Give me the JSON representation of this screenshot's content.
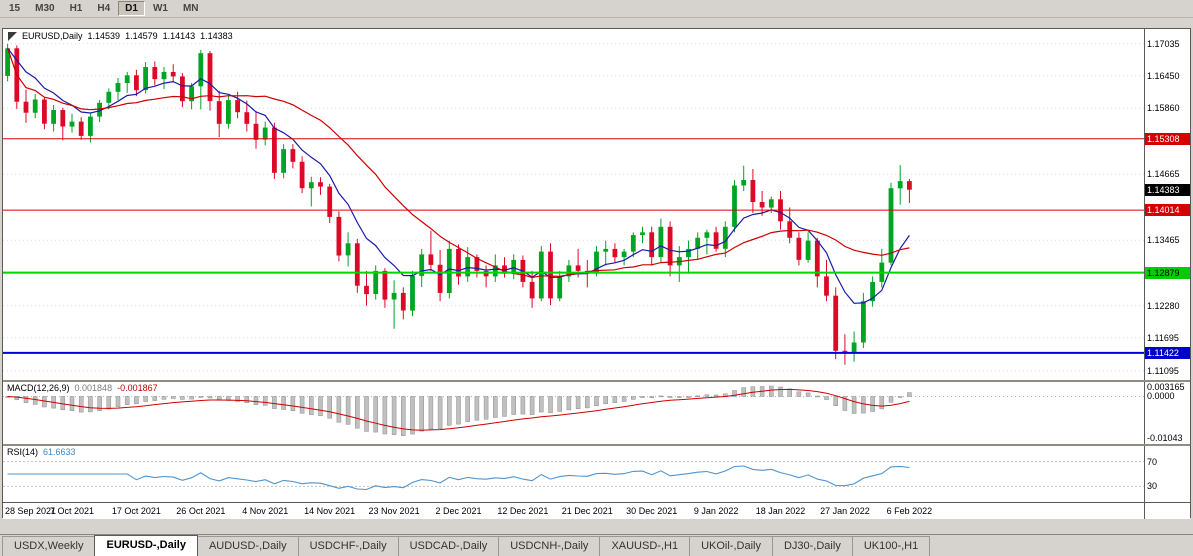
{
  "window": {
    "background": "#d6d3ce"
  },
  "toolbar": {
    "timeframes": [
      {
        "label": "15",
        "active": false
      },
      {
        "label": "M30",
        "active": false
      },
      {
        "label": "H1",
        "active": false
      },
      {
        "label": "H4",
        "active": false
      },
      {
        "label": "D1",
        "active": true
      },
      {
        "label": "W1",
        "active": false
      },
      {
        "label": "MN",
        "active": false
      }
    ]
  },
  "chart": {
    "header": {
      "symbol": "EURUSD,Daily",
      "open": "1.14539",
      "high": "1.14579",
      "low": "1.14143",
      "close": "1.14383"
    }
  },
  "chart_data": {
    "type": "candlestick",
    "symbol": "EURUSD",
    "period": "Daily",
    "y_range": [
      1.1093,
      1.173
    ],
    "y_ticks": [
      "1.17035",
      "1.16450",
      "1.15860",
      "1.14665",
      "1.13465",
      "1.12280",
      "1.11695",
      "1.11095"
    ],
    "price_lines": [
      {
        "value": 1.15308,
        "label": "1.15308",
        "color": "#e00000",
        "thickness": 1,
        "badge_bg": "#d40000",
        "badge_fg": "#ffffff"
      },
      {
        "value": 1.14014,
        "label": "1.14014",
        "color": "#e00000",
        "thickness": 1,
        "badge_bg": "#d40000",
        "badge_fg": "#ffffff"
      },
      {
        "value": 1.12879,
        "label": "1.12879",
        "color": "#00d400",
        "thickness": 2,
        "badge_bg": "#00cc00",
        "badge_fg": "#000000"
      },
      {
        "value": 1.11422,
        "label": "1.11422",
        "color": "#0000e0",
        "thickness": 2,
        "badge_bg": "#0000cc",
        "badge_fg": "#ffffff"
      }
    ],
    "current_price": {
      "value": 1.14383,
      "label": "1.14383",
      "bg": "#000000"
    },
    "slots": 124,
    "x_labels": [
      {
        "i": 0,
        "t": "28 Sep 2021"
      },
      {
        "i": 7,
        "t": "7 Oct 2021"
      },
      {
        "i": 14,
        "t": "17 Oct 2021"
      },
      {
        "i": 21,
        "t": "26 Oct 2021"
      },
      {
        "i": 28,
        "t": "4 Nov 2021"
      },
      {
        "i": 35,
        "t": "14 Nov 2021"
      },
      {
        "i": 42,
        "t": "23 Nov 2021"
      },
      {
        "i": 49,
        "t": "2 Dec 2021"
      },
      {
        "i": 56,
        "t": "12 Dec 2021"
      },
      {
        "i": 63,
        "t": "21 Dec 2021"
      },
      {
        "i": 70,
        "t": "30 Dec 2021"
      },
      {
        "i": 77,
        "t": "9 Jan 2022"
      },
      {
        "i": 84,
        "t": "18 Jan 2022"
      },
      {
        "i": 91,
        "t": "27 Jan 2022"
      },
      {
        "i": 98,
        "t": "6 Feb 2022"
      }
    ],
    "candles": [
      [
        1.1645,
        1.1703,
        1.1635,
        1.1695
      ],
      [
        1.1695,
        1.17,
        1.1585,
        1.1598
      ],
      [
        1.1598,
        1.162,
        1.156,
        1.1578
      ],
      [
        1.1578,
        1.1612,
        1.1568,
        1.1602
      ],
      [
        1.1602,
        1.1606,
        1.1548,
        1.1558
      ],
      [
        1.1558,
        1.1592,
        1.1544,
        1.1583
      ],
      [
        1.1583,
        1.1587,
        1.1528,
        1.1553
      ],
      [
        1.1553,
        1.1576,
        1.1542,
        1.1562
      ],
      [
        1.1562,
        1.157,
        1.1529,
        1.1536
      ],
      [
        1.1536,
        1.1577,
        1.1524,
        1.1571
      ],
      [
        1.1571,
        1.1601,
        1.1561,
        1.1596
      ],
      [
        1.1596,
        1.1622,
        1.1584,
        1.1616
      ],
      [
        1.1616,
        1.1641,
        1.1601,
        1.1632
      ],
      [
        1.1632,
        1.1652,
        1.1614,
        1.1646
      ],
      [
        1.1646,
        1.1656,
        1.1608,
        1.1619
      ],
      [
        1.1619,
        1.167,
        1.1613,
        1.1661
      ],
      [
        1.1661,
        1.1671,
        1.1628,
        1.1639
      ],
      [
        1.1639,
        1.1661,
        1.1621,
        1.1652
      ],
      [
        1.1652,
        1.1666,
        1.1633,
        1.1644
      ],
      [
        1.1644,
        1.165,
        1.1588,
        1.1599
      ],
      [
        1.1599,
        1.1632,
        1.1584,
        1.1626
      ],
      [
        1.1626,
        1.1692,
        1.1584,
        1.1686
      ],
      [
        1.1686,
        1.169,
        1.1582,
        1.1599
      ],
      [
        1.1599,
        1.1618,
        1.1534,
        1.1558
      ],
      [
        1.1558,
        1.161,
        1.1549,
        1.1601
      ],
      [
        1.1601,
        1.1616,
        1.1568,
        1.1579
      ],
      [
        1.1579,
        1.16,
        1.1544,
        1.1558
      ],
      [
        1.1558,
        1.1581,
        1.1513,
        1.1529
      ],
      [
        1.1529,
        1.1562,
        1.1519,
        1.1551
      ],
      [
        1.1551,
        1.156,
        1.1458,
        1.1469
      ],
      [
        1.1469,
        1.1521,
        1.1459,
        1.1512
      ],
      [
        1.1512,
        1.1521,
        1.1477,
        1.1489
      ],
      [
        1.1489,
        1.1499,
        1.1432,
        1.1441
      ],
      [
        1.1441,
        1.1462,
        1.1408,
        1.1452
      ],
      [
        1.1452,
        1.1461,
        1.1429,
        1.1444
      ],
      [
        1.1444,
        1.1449,
        1.1378,
        1.1389
      ],
      [
        1.1389,
        1.1399,
        1.1308,
        1.1319
      ],
      [
        1.1319,
        1.1361,
        1.1299,
        1.1341
      ],
      [
        1.1341,
        1.1349,
        1.1251,
        1.1264
      ],
      [
        1.1264,
        1.1291,
        1.1228,
        1.1249
      ],
      [
        1.1249,
        1.1301,
        1.1239,
        1.1291
      ],
      [
        1.1291,
        1.1296,
        1.1224,
        1.1239
      ],
      [
        1.1239,
        1.1274,
        1.1186,
        1.1251
      ],
      [
        1.1251,
        1.1261,
        1.1203,
        1.1219
      ],
      [
        1.1219,
        1.1291,
        1.1209,
        1.1282
      ],
      [
        1.1282,
        1.1331,
        1.1262,
        1.1321
      ],
      [
        1.1321,
        1.1364,
        1.1291,
        1.1302
      ],
      [
        1.1302,
        1.1329,
        1.1236,
        1.1251
      ],
      [
        1.1251,
        1.1346,
        1.1241,
        1.1331
      ],
      [
        1.1331,
        1.1339,
        1.1266,
        1.1281
      ],
      [
        1.1281,
        1.1334,
        1.1271,
        1.1316
      ],
      [
        1.1316,
        1.1321,
        1.1279,
        1.1291
      ],
      [
        1.1291,
        1.1301,
        1.1261,
        1.1281
      ],
      [
        1.1281,
        1.1321,
        1.1271,
        1.1301
      ],
      [
        1.1301,
        1.1316,
        1.1279,
        1.1286
      ],
      [
        1.1286,
        1.1321,
        1.1276,
        1.1311
      ],
      [
        1.1311,
        1.1319,
        1.1261,
        1.1271
      ],
      [
        1.1271,
        1.1291,
        1.1224,
        1.1241
      ],
      [
        1.1241,
        1.1336,
        1.1236,
        1.1326
      ],
      [
        1.1326,
        1.1341,
        1.1229,
        1.1241
      ],
      [
        1.1241,
        1.1291,
        1.1236,
        1.1281
      ],
      [
        1.1281,
        1.1311,
        1.1271,
        1.1301
      ],
      [
        1.1301,
        1.1331,
        1.1279,
        1.1291
      ],
      [
        1.1291,
        1.1311,
        1.1261,
        1.1286
      ],
      [
        1.1286,
        1.1336,
        1.1281,
        1.1326
      ],
      [
        1.1326,
        1.1346,
        1.1301,
        1.1331
      ],
      [
        1.1331,
        1.1341,
        1.1306,
        1.1316
      ],
      [
        1.1316,
        1.1331,
        1.1301,
        1.1326
      ],
      [
        1.1326,
        1.1361,
        1.1316,
        1.1356
      ],
      [
        1.1356,
        1.1371,
        1.1341,
        1.1361
      ],
      [
        1.1361,
        1.1371,
        1.1301,
        1.1316
      ],
      [
        1.1316,
        1.1386,
        1.1306,
        1.1371
      ],
      [
        1.1371,
        1.1381,
        1.1281,
        1.1301
      ],
      [
        1.1301,
        1.1336,
        1.1271,
        1.1316
      ],
      [
        1.1316,
        1.1346,
        1.1286,
        1.1331
      ],
      [
        1.1331,
        1.1361,
        1.1311,
        1.1351
      ],
      [
        1.1351,
        1.1366,
        1.1321,
        1.1361
      ],
      [
        1.1361,
        1.1371,
        1.1326,
        1.1331
      ],
      [
        1.1331,
        1.1381,
        1.1316,
        1.1371
      ],
      [
        1.1371,
        1.1456,
        1.1361,
        1.1446
      ],
      [
        1.1446,
        1.1482,
        1.1436,
        1.1456
      ],
      [
        1.1456,
        1.1476,
        1.1396,
        1.1416
      ],
      [
        1.1416,
        1.1436,
        1.1391,
        1.1406
      ],
      [
        1.1406,
        1.1426,
        1.1396,
        1.1421
      ],
      [
        1.1421,
        1.1436,
        1.1366,
        1.1381
      ],
      [
        1.1381,
        1.1406,
        1.1341,
        1.1351
      ],
      [
        1.1351,
        1.1361,
        1.1301,
        1.1311
      ],
      [
        1.1311,
        1.1361,
        1.1306,
        1.1346
      ],
      [
        1.1346,
        1.1351,
        1.1261,
        1.1281
      ],
      [
        1.1281,
        1.1311,
        1.1236,
        1.1246
      ],
      [
        1.1246,
        1.1261,
        1.1131,
        1.1146
      ],
      [
        1.1146,
        1.1176,
        1.1121,
        1.1141
      ],
      [
        1.1141,
        1.1181,
        1.1126,
        1.1161
      ],
      [
        1.1161,
        1.1251,
        1.1151,
        1.1236
      ],
      [
        1.1236,
        1.1281,
        1.1226,
        1.1271
      ],
      [
        1.1271,
        1.1331,
        1.1261,
        1.1306
      ],
      [
        1.1306,
        1.1451,
        1.1301,
        1.1441
      ],
      [
        1.1441,
        1.1483,
        1.1411,
        1.1454
      ],
      [
        1.14539,
        1.14579,
        1.14143,
        1.14383
      ]
    ],
    "colors": {
      "bull": "#00a524",
      "bear": "#dc0a28",
      "grid": "#dedede",
      "macd_hist": "#c0c0c0",
      "macd_hist_border": "#8c8c8c",
      "macd_signal": "#d00000",
      "rsi_line": "#4f94cd",
      "level": "#c0c0c0"
    },
    "indicators": {
      "ma_fast": {
        "type": "ema",
        "period": 8,
        "color": "#1a1aa6"
      },
      "ma_slow": {
        "type": "sma",
        "period": 20,
        "color": "#cc0000"
      },
      "macd": {
        "name": "MACD(12,26,9)",
        "main_value": "0.001848",
        "signal_value": "-0.001867",
        "fast": 12,
        "slow": 26,
        "signal_period": 9,
        "range": [
          -0.0115,
          0.0035
        ],
        "ticks": [
          "0.003165",
          "0.0000",
          "-0.01043"
        ]
      },
      "rsi": {
        "name": "RSI(14)",
        "value": "61.6633",
        "period": 14,
        "levels": [
          70,
          30
        ],
        "range": [
          5,
          95
        ]
      }
    }
  },
  "tabs": [
    {
      "label": "USDX,Weekly",
      "active": false
    },
    {
      "label": "EURUSD-,Daily",
      "active": true
    },
    {
      "label": "AUDUSD-,Daily",
      "active": false
    },
    {
      "label": "USDCHF-,Daily",
      "active": false
    },
    {
      "label": "USDCAD-,Daily",
      "active": false
    },
    {
      "label": "USDCNH-,Daily",
      "active": false
    },
    {
      "label": "XAUUSD-,H1",
      "active": false
    },
    {
      "label": "UKOil-,Daily",
      "active": false
    },
    {
      "label": "DJ30-,Daily",
      "active": false
    },
    {
      "label": "UK100-,H1",
      "active": false
    }
  ]
}
